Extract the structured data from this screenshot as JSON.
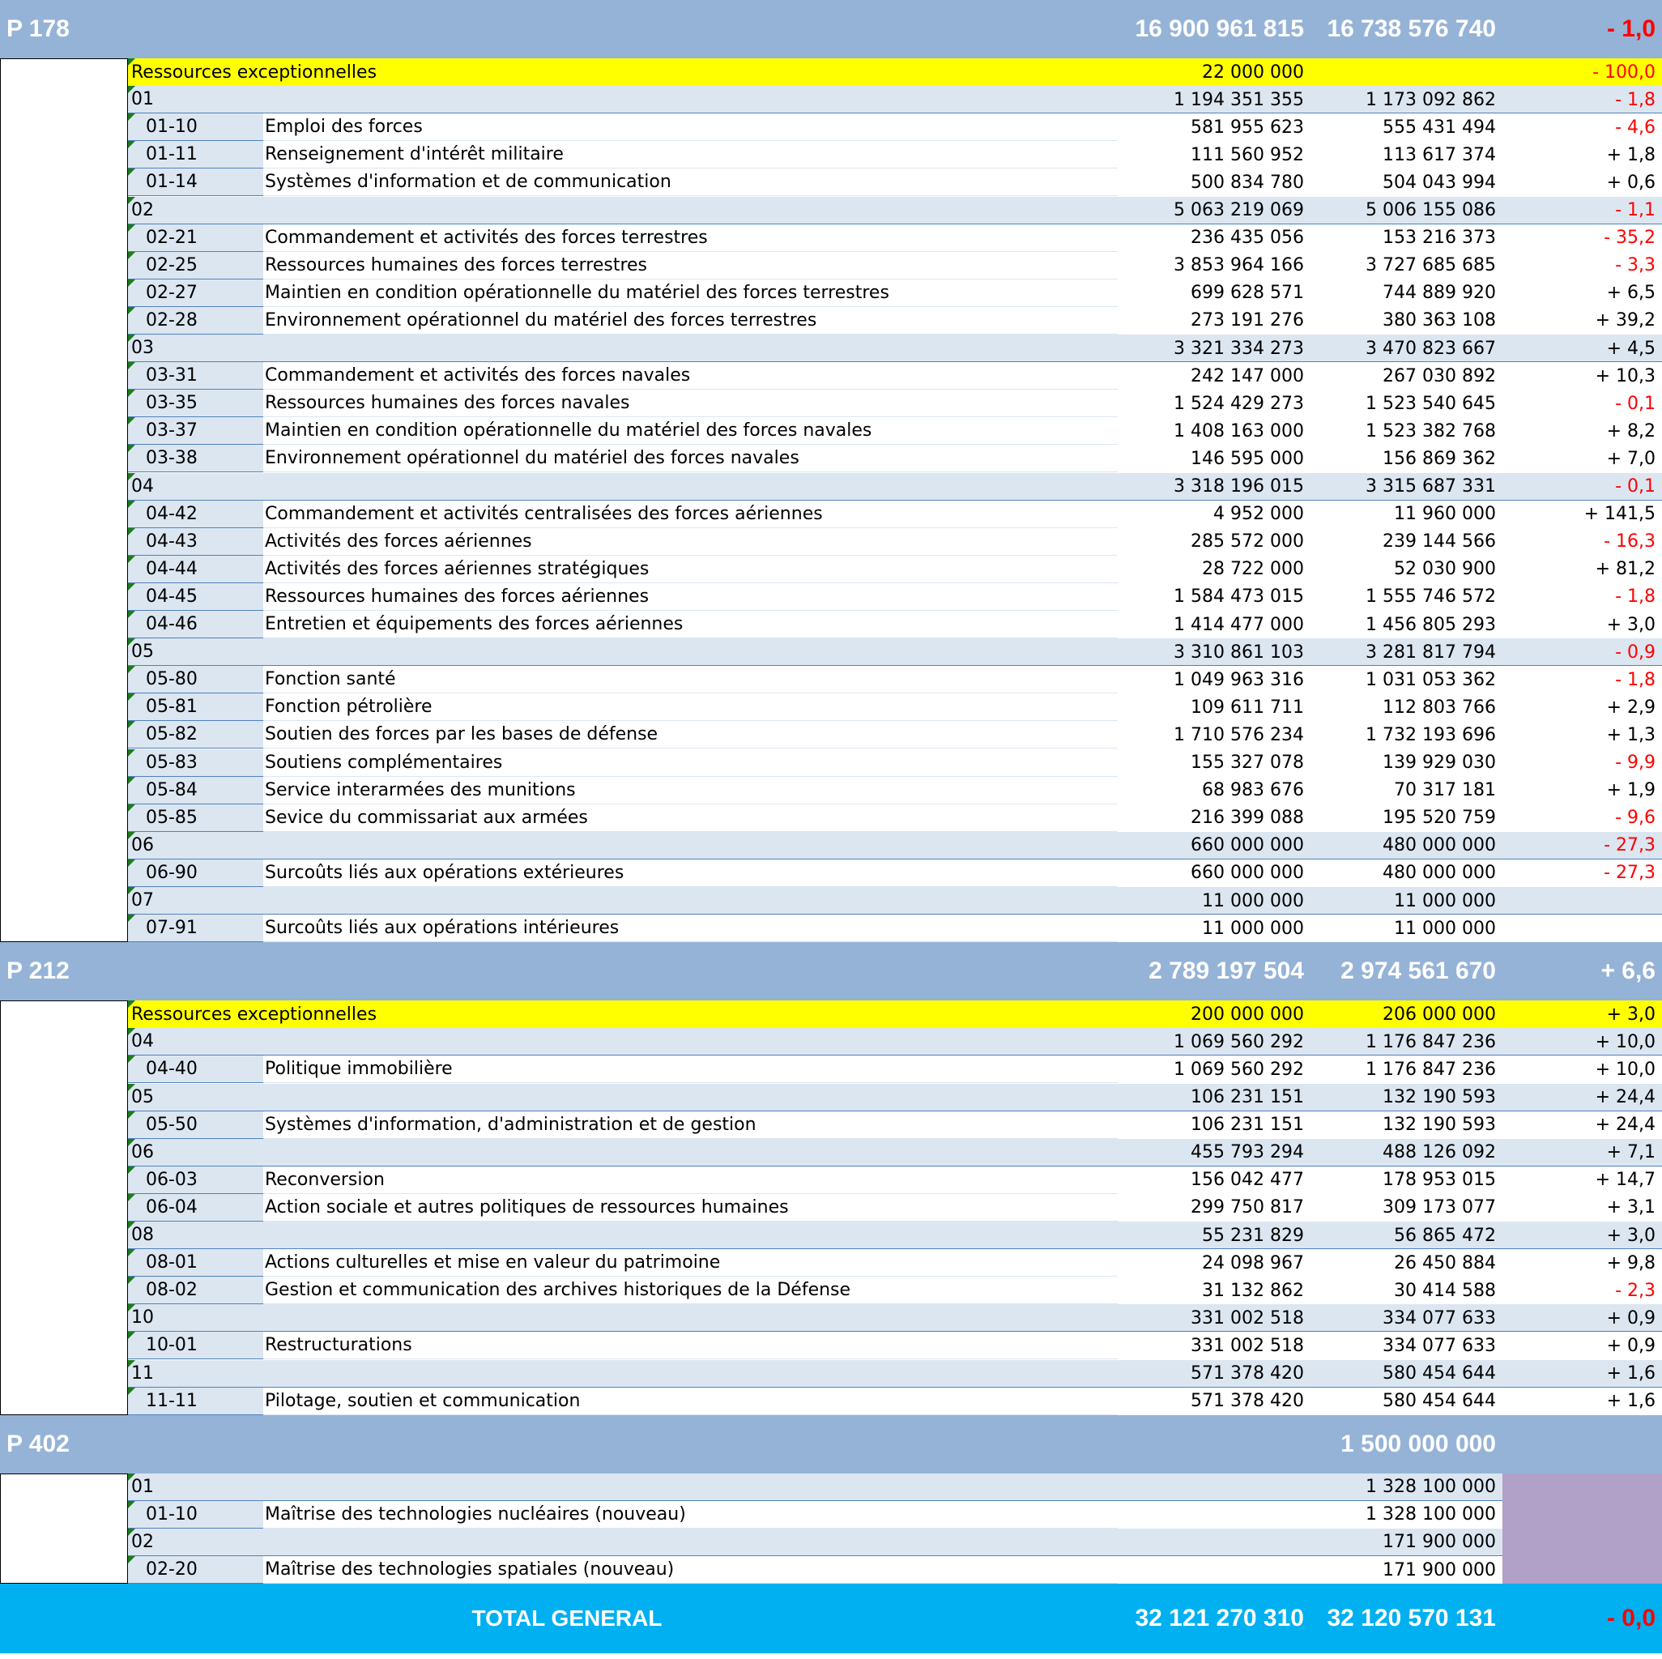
{
  "sections": [
    {
      "label": "P 178",
      "total1": "16 900 961 815",
      "total2": "16 738 576 740",
      "variation": "- 1,0",
      "rows": [
        {
          "type": "exc",
          "code": "Ressources exceptionnelles",
          "label": "",
          "v1": "22 000 000",
          "v2": "",
          "var": "- 100,0"
        },
        {
          "type": "group",
          "code": "01",
          "label": "",
          "v1": "1 194 351 355",
          "v2": "1 173 092 862",
          "var": "- 1,8"
        },
        {
          "type": "item",
          "code": "01-10",
          "label": "Emploi des forces",
          "v1": "581 955 623",
          "v2": "555 431 494",
          "var": "- 4,6"
        },
        {
          "type": "item",
          "code": "01-11",
          "label": "Renseignement d'intérêt militaire",
          "v1": "111 560 952",
          "v2": "113 617 374",
          "var": "+ 1,8"
        },
        {
          "type": "item",
          "code": "01-14",
          "label": "Systèmes d'information et de communication",
          "v1": "500 834 780",
          "v2": "504 043 994",
          "var": "+ 0,6"
        },
        {
          "type": "group",
          "code": "02",
          "label": "",
          "v1": "5 063 219 069",
          "v2": "5 006 155 086",
          "var": "- 1,1"
        },
        {
          "type": "item",
          "code": "02-21",
          "label": "Commandement et activités des forces terrestres",
          "v1": "236 435 056",
          "v2": "153 216 373",
          "var": "- 35,2"
        },
        {
          "type": "item",
          "code": "02-25",
          "label": "Ressources humaines des forces terrestres",
          "v1": "3 853 964 166",
          "v2": "3 727 685 685",
          "var": "- 3,3"
        },
        {
          "type": "item",
          "code": "02-27",
          "label": "Maintien en condition opérationnelle du matériel des forces terrestres",
          "v1": "699 628 571",
          "v2": "744 889 920",
          "var": "+ 6,5"
        },
        {
          "type": "item",
          "code": "02-28",
          "label": "Environnement opérationnel du matériel des forces terrestres",
          "v1": "273 191 276",
          "v2": "380 363 108",
          "var": "+ 39,2"
        },
        {
          "type": "group",
          "code": "03",
          "label": "",
          "v1": "3 321 334 273",
          "v2": "3 470 823 667",
          "var": "+ 4,5"
        },
        {
          "type": "item",
          "code": "03-31",
          "label": "Commandement et activités des forces navales",
          "v1": "242 147 000",
          "v2": "267 030 892",
          "var": "+ 10,3"
        },
        {
          "type": "item",
          "code": "03-35",
          "label": "Ressources humaines des forces navales",
          "v1": "1 524 429 273",
          "v2": "1 523 540 645",
          "var": "- 0,1"
        },
        {
          "type": "item",
          "code": "03-37",
          "label": "Maintien en condition opérationnelle du matériel des forces navales",
          "v1": "1 408 163 000",
          "v2": "1 523 382 768",
          "var": "+ 8,2"
        },
        {
          "type": "item",
          "code": "03-38",
          "label": "Environnement opérationnel du matériel des forces navales",
          "v1": "146 595 000",
          "v2": "156 869 362",
          "var": "+ 7,0"
        },
        {
          "type": "group",
          "code": "04",
          "label": "",
          "v1": "3 318 196 015",
          "v2": "3 315 687 331",
          "var": "- 0,1"
        },
        {
          "type": "item",
          "code": "04-42",
          "label": "Commandement et activités centralisées des forces aériennes",
          "v1": "4 952 000",
          "v2": "11 960 000",
          "var": "+ 141,5"
        },
        {
          "type": "item",
          "code": "04-43",
          "label": "Activités des forces aériennes",
          "v1": "285 572 000",
          "v2": "239 144 566",
          "var": "- 16,3"
        },
        {
          "type": "item",
          "code": "04-44",
          "label": "Activités des forces aériennes stratégiques",
          "v1": "28 722 000",
          "v2": "52 030 900",
          "var": "+ 81,2"
        },
        {
          "type": "item",
          "code": "04-45",
          "label": "Ressources humaines des forces aériennes",
          "v1": "1 584 473 015",
          "v2": "1 555 746 572",
          "var": "- 1,8"
        },
        {
          "type": "item",
          "code": "04-46",
          "label": "Entretien et équipements des forces aériennes",
          "v1": "1 414 477 000",
          "v2": "1 456 805 293",
          "var": "+ 3,0"
        },
        {
          "type": "group",
          "code": "05",
          "label": "",
          "v1": "3 310 861 103",
          "v2": "3 281 817 794",
          "var": "- 0,9"
        },
        {
          "type": "item",
          "code": "05-80",
          "label": "Fonction santé",
          "v1": "1 049 963 316",
          "v2": "1 031 053 362",
          "var": "- 1,8"
        },
        {
          "type": "item",
          "code": "05-81",
          "label": "Fonction pétrolière",
          "v1": "109 611 711",
          "v2": "112 803 766",
          "var": "+ 2,9"
        },
        {
          "type": "item",
          "code": "05-82",
          "label": "Soutien des forces par les bases de défense",
          "v1": "1 710 576 234",
          "v2": "1 732 193 696",
          "var": "+ 1,3"
        },
        {
          "type": "item",
          "code": "05-83",
          "label": "Soutiens complémentaires",
          "v1": "155 327 078",
          "v2": "139 929 030",
          "var": "- 9,9"
        },
        {
          "type": "item",
          "code": "05-84",
          "label": "Service interarmées des munitions",
          "v1": "68 983 676",
          "v2": "70 317 181",
          "var": "+ 1,9"
        },
        {
          "type": "item",
          "code": "05-85",
          "label": "Sevice du commissariat aux armées",
          "v1": "216 399 088",
          "v2": "195 520 759",
          "var": "- 9,6"
        },
        {
          "type": "group",
          "code": "06",
          "label": "",
          "v1": "660 000 000",
          "v2": "480 000 000",
          "var": "- 27,3"
        },
        {
          "type": "item",
          "code": "06-90",
          "label": "Surcoûts liés aux opérations extérieures",
          "v1": "660 000 000",
          "v2": "480 000 000",
          "var": "- 27,3"
        },
        {
          "type": "group",
          "code": "07",
          "label": "",
          "v1": "11 000 000",
          "v2": "11 000 000",
          "var": ""
        },
        {
          "type": "item",
          "code": "07-91",
          "label": "Surcoûts liés aux opérations intérieures",
          "v1": "11 000 000",
          "v2": "11 000 000",
          "var": ""
        }
      ]
    },
    {
      "label": "P 212",
      "total1": "2 789 197 504",
      "total2": "2 974 561 670",
      "variation": "+ 6,6",
      "rows": [
        {
          "type": "exc",
          "code": "Ressources exceptionnelles",
          "label": "",
          "v1": "200 000 000",
          "v2": "206 000 000",
          "var": "+ 3,0"
        },
        {
          "type": "group",
          "code": "04",
          "label": "",
          "v1": "1 069 560 292",
          "v2": "1 176 847 236",
          "var": "+ 10,0"
        },
        {
          "type": "item",
          "code": "04-40",
          "label": "Politique immobilière",
          "v1": "1 069 560 292",
          "v2": "1 176 847 236",
          "var": "+ 10,0"
        },
        {
          "type": "group",
          "code": "05",
          "label": "",
          "v1": "106 231 151",
          "v2": "132 190 593",
          "var": "+ 24,4"
        },
        {
          "type": "item",
          "code": "05-50",
          "label": "Systèmes d'information, d'administration et de gestion",
          "v1": "106 231 151",
          "v2": "132 190 593",
          "var": "+ 24,4"
        },
        {
          "type": "group",
          "code": "06",
          "label": "",
          "v1": "455 793 294",
          "v2": "488 126 092",
          "var": "+ 7,1"
        },
        {
          "type": "item",
          "code": "06-03",
          "label": "Reconversion",
          "v1": "156 042 477",
          "v2": "178 953 015",
          "var": "+ 14,7"
        },
        {
          "type": "item",
          "code": "06-04",
          "label": "Action sociale et autres politiques de ressources humaines",
          "v1": "299 750 817",
          "v2": "309 173 077",
          "var": "+ 3,1"
        },
        {
          "type": "group",
          "code": "08",
          "label": "",
          "v1": "55 231 829",
          "v2": "56 865 472",
          "var": "+ 3,0"
        },
        {
          "type": "item",
          "code": "08-01",
          "label": "Actions culturelles et mise en valeur du patrimoine",
          "v1": "24 098 967",
          "v2": "26 450 884",
          "var": "+ 9,8"
        },
        {
          "type": "item",
          "code": "08-02",
          "label": "Gestion et communication des archives historiques de la Défense",
          "v1": "31 132 862",
          "v2": "30 414 588",
          "var": "- 2,3"
        },
        {
          "type": "group",
          "code": "10",
          "label": "",
          "v1": "331 002 518",
          "v2": "334 077 633",
          "var": "+ 0,9"
        },
        {
          "type": "item",
          "code": "10-01",
          "label": "Restructurations",
          "v1": "331 002 518",
          "v2": "334 077 633",
          "var": "+ 0,9"
        },
        {
          "type": "group",
          "code": "11",
          "label": "",
          "v1": "571 378 420",
          "v2": "580 454 644",
          "var": "+ 1,6"
        },
        {
          "type": "item",
          "code": "11-11",
          "label": "Pilotage, soutien et communication",
          "v1": "571 378 420",
          "v2": "580 454 644",
          "var": "+ 1,6"
        }
      ]
    },
    {
      "label": "P 402",
      "total1": "",
      "total2": "1 500 000 000",
      "variation": "",
      "rows": [
        {
          "type": "group",
          "code": "01",
          "label": "",
          "v1": "",
          "v2": "1 328 100 000",
          "var": ""
        },
        {
          "type": "item",
          "code": "01-10",
          "label": "Maîtrise des technologies nucléaires (nouveau)",
          "v1": "",
          "v2": "1 328 100 000",
          "var": ""
        },
        {
          "type": "group",
          "code": "02",
          "label": "",
          "v1": "",
          "v2": "171 900 000",
          "var": ""
        },
        {
          "type": "item",
          "code": "02-20",
          "label": "Maîtrise des technologies spatiales (nouveau)",
          "v1": "",
          "v2": "171 900 000",
          "var": ""
        }
      ]
    }
  ],
  "total": {
    "label": "TOTAL GENERAL",
    "v1": "32 121 270 310",
    "v2": "32 120 570 131",
    "var": "- 0,0"
  },
  "colors": {
    "section_header": "#95b3d7",
    "group_row": "#dce6f1",
    "exceptional": "#ffff00",
    "total": "#00b0f0",
    "p402_variation": "#b1a0c7",
    "negative": "#ff0000"
  }
}
